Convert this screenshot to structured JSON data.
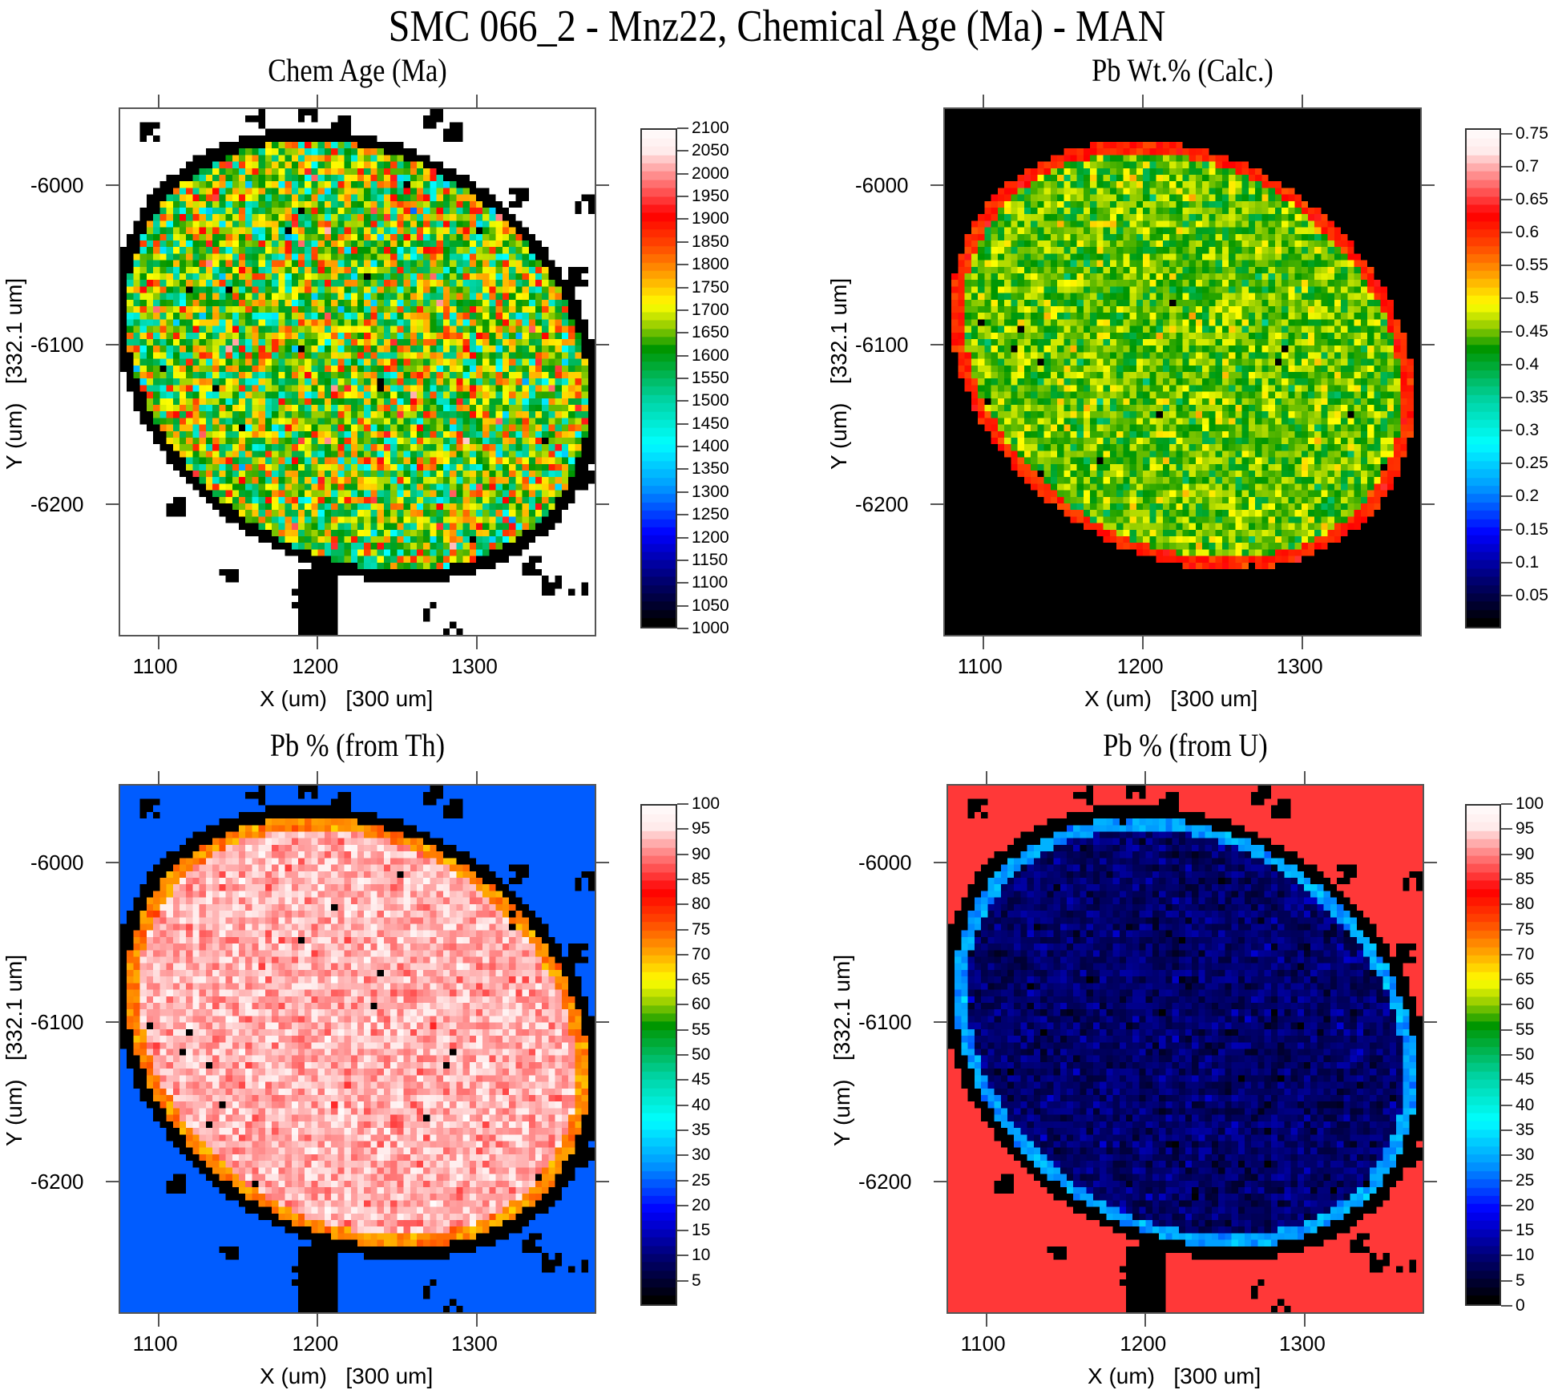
{
  "title": "SMC 066_2 - Mnz22, Chemical Age (Ma) - MAN",
  "chart_data": [
    {
      "type": "heatmap",
      "id": "chem-age",
      "title": "Chem Age (Ma)",
      "xlabel": "X (um)   [300 um]",
      "ylabel": "Y (um)   [332.1 um]",
      "xlim": [
        1075,
        1375
      ],
      "ylim": [
        -6283,
        -5951
      ],
      "xticks": [
        "1100",
        "1200",
        "1300"
      ],
      "yticks": [
        "-6000",
        "-6100",
        "-6200"
      ],
      "colorbar": {
        "min": 1000,
        "max": 2100,
        "ticks": [
          "2100",
          "2050",
          "2000",
          "1950",
          "1900",
          "1850",
          "1800",
          "1750",
          "1700",
          "1650",
          "1600",
          "1550",
          "1500",
          "1450",
          "1400",
          "1350",
          "1300",
          "1250",
          "1200",
          "1150",
          "1100",
          "1050",
          "1000"
        ]
      },
      "background": "white",
      "grain_value_mean": 1650,
      "grain_value_spread": 250,
      "rim_value": null,
      "outside_value_color": "#ffffff",
      "void_color": "#000000"
    },
    {
      "type": "heatmap",
      "id": "pb-wt",
      "title": "Pb Wt.% (Calc.)",
      "xlabel": "X (um)   [300 um]",
      "ylabel": "Y (um)   [332.1 um]",
      "xlim": [
        1075,
        1375
      ],
      "ylim": [
        -6283,
        -5951
      ],
      "xticks": [
        "1100",
        "1200",
        "1300"
      ],
      "yticks": [
        "-6000",
        "-6100",
        "-6200"
      ],
      "colorbar": {
        "min": 0,
        "max": 0.758,
        "ticks": [
          "0.75",
          "0.7",
          "0.65",
          "0.6",
          "0.55",
          "0.5",
          "0.45",
          "0.4",
          "0.35",
          "0.3",
          "0.25",
          "0.2",
          "0.15",
          "0.1",
          "0.05"
        ]
      },
      "background": "black",
      "grain_value_mean": 0.44,
      "grain_value_spread": 0.06,
      "rim_value": 0.6,
      "outside_value_color": "#000000",
      "void_color": "#000000"
    },
    {
      "type": "heatmap",
      "id": "pb-from-th",
      "title": "Pb % (from Th)",
      "xlabel": "X (um)   [300 um]",
      "ylabel": "Y (um)   [332.1 um]",
      "xlim": [
        1075,
        1375
      ],
      "ylim": [
        -6283,
        -5951
      ],
      "xticks": [
        "1100",
        "1200",
        "1300"
      ],
      "yticks": [
        "-6000",
        "-6100",
        "-6200"
      ],
      "colorbar": {
        "min": 0,
        "max": 100,
        "ticks": [
          "100",
          "95",
          "90",
          "85",
          "80",
          "75",
          "70",
          "65",
          "60",
          "55",
          "50",
          "45",
          "40",
          "35",
          "30",
          "25",
          "20",
          "15",
          "10",
          "5"
        ]
      },
      "background": "blue",
      "grain_value_mean": 92,
      "grain_value_spread": 5,
      "rim_value": 72,
      "outside_value_color": "#005cff",
      "void_color": "#000000"
    },
    {
      "type": "heatmap",
      "id": "pb-from-u",
      "title": "Pb % (from U)",
      "xlabel": "X (um)   [300 um]",
      "ylabel": "Y (um)   [332.1 um]",
      "xlim": [
        1075,
        1375
      ],
      "ylim": [
        -6283,
        -5951
      ],
      "xticks": [
        "1100",
        "1200",
        "1300"
      ],
      "yticks": [
        "-6000",
        "-6100",
        "-6200"
      ],
      "colorbar": {
        "min": 0,
        "max": 100,
        "ticks": [
          "100",
          "95",
          "90",
          "85",
          "80",
          "75",
          "70",
          "65",
          "60",
          "55",
          "50",
          "45",
          "40",
          "35",
          "30",
          "25",
          "20",
          "15",
          "10",
          "5",
          "0"
        ]
      },
      "background": "red",
      "grain_value_mean": 8,
      "grain_value_spread": 5,
      "rim_value": 28,
      "outside_value_color": "#ff3838",
      "void_color": "#000000"
    }
  ]
}
